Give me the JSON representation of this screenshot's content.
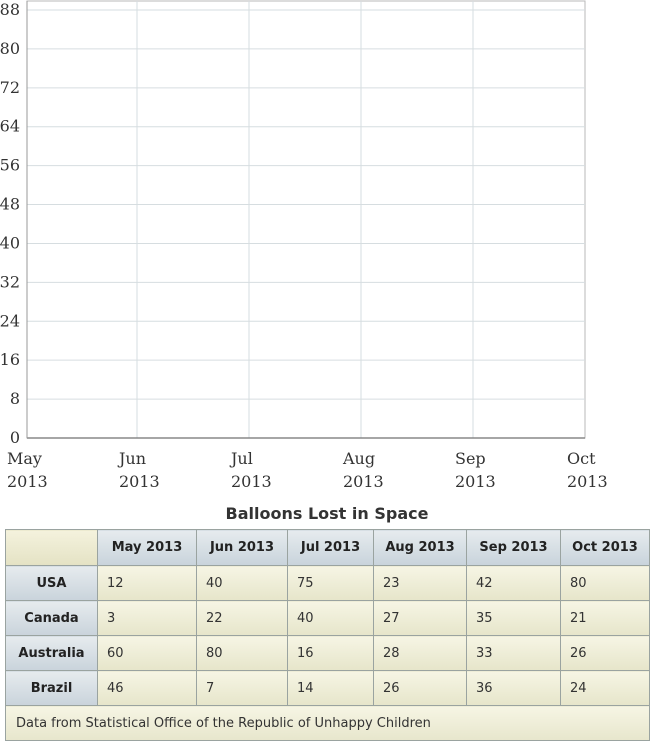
{
  "chart_data": {
    "type": "line",
    "title": "",
    "xlabel": "",
    "ylabel": "",
    "x_ticks": [
      {
        "line1": "May",
        "line2": "2013"
      },
      {
        "line1": "Jun",
        "line2": "2013"
      },
      {
        "line1": "Jul",
        "line2": "2013"
      },
      {
        "line1": "Aug",
        "line2": "2013"
      },
      {
        "line1": "Sep",
        "line2": "2013"
      },
      {
        "line1": "Oct",
        "line2": "2013"
      }
    ],
    "y_ticks": [
      "0",
      "8",
      "16",
      "24",
      "32",
      "40",
      "48",
      "56",
      "64",
      "72",
      "80",
      "88"
    ],
    "ylim": [
      0,
      88
    ],
    "grid": true,
    "series": []
  },
  "table": {
    "title": "Balloons Lost in Space",
    "columns": [
      "May 2013",
      "Jun 2013",
      "Jul 2013",
      "Aug 2013",
      "Sep 2013",
      "Oct 2013"
    ],
    "rows": [
      {
        "label": "USA",
        "values": [
          "12",
          "40",
          "75",
          "23",
          "42",
          "80"
        ]
      },
      {
        "label": "Canada",
        "values": [
          "3",
          "22",
          "40",
          "27",
          "35",
          "21"
        ]
      },
      {
        "label": "Australia",
        "values": [
          "60",
          "80",
          "16",
          "28",
          "33",
          "26"
        ]
      },
      {
        "label": "Brazil",
        "values": [
          "46",
          "7",
          "14",
          "26",
          "36",
          "24"
        ]
      }
    ],
    "footer": "Data from Statistical Office of the Republic of Unhappy Children"
  }
}
